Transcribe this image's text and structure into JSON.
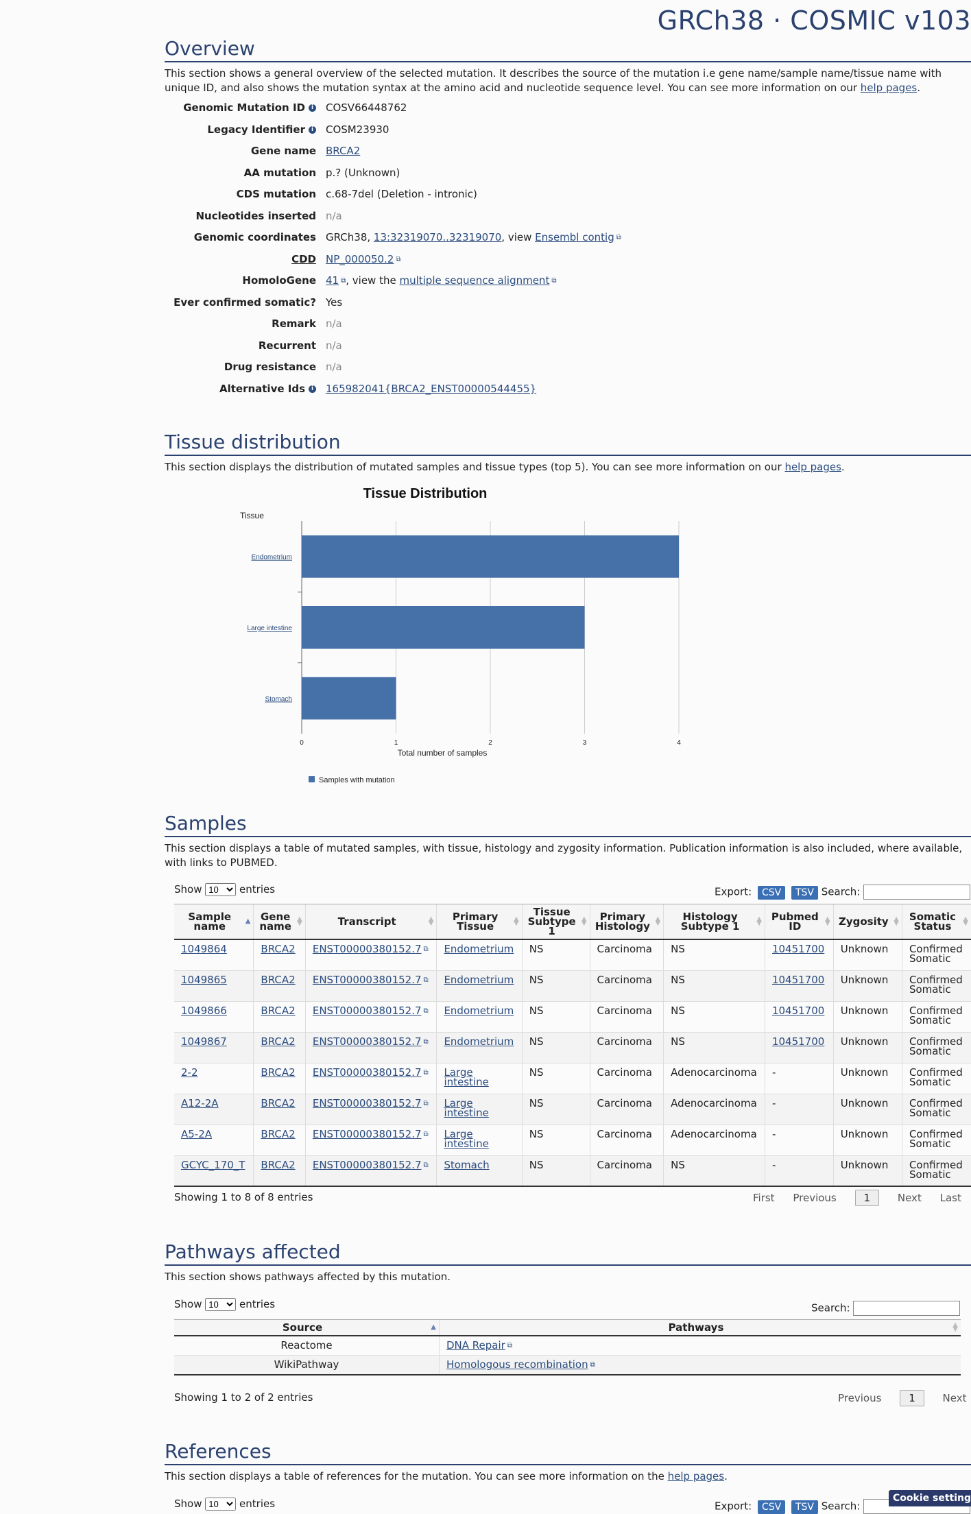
{
  "brand": "GRCh38 · COSMIC v103",
  "overview": {
    "title": "Overview",
    "desc_pre": "This section shows a general overview of the selected mutation. It describes the source of the mutation i.e gene name/sample name/tissue name with unique ID, and also shows the mutation syntax at the amino acid and nucleotide sequence level. You can see more information on our ",
    "desc_link": "help pages",
    "desc_post": ".",
    "fields": {
      "genomic_mutation_id": {
        "label": "Genomic Mutation ID",
        "value": "COSV66448762"
      },
      "legacy_identifier": {
        "label": "Legacy Identifier",
        "value": "COSM23930"
      },
      "gene_name": {
        "label": "Gene name",
        "value": "BRCA2"
      },
      "aa_mutation": {
        "label": "AA mutation",
        "value": "p.? (Unknown)"
      },
      "cds_mutation": {
        "label": "CDS mutation",
        "value": "c.68-7del (Deletion - intronic)"
      },
      "nucleotides_inserted": {
        "label": "Nucleotides inserted",
        "value": "n/a"
      },
      "genomic_coordinates": {
        "label": "Genomic coordinates",
        "prefix": "GRCh38, ",
        "link": "13:32319070..32319070",
        "mid": ", view ",
        "link2": "Ensembl contig"
      },
      "cdd": {
        "label": "CDD",
        "link": "NP_000050.2"
      },
      "homologene": {
        "label": "HomoloGene",
        "link": "41",
        "mid": ", view the ",
        "link2": "multiple sequence alignment"
      },
      "ever_confirmed_somatic": {
        "label": "Ever confirmed somatic?",
        "value": "Yes"
      },
      "remark": {
        "label": "Remark",
        "value": "n/a"
      },
      "recurrent": {
        "label": "Recurrent",
        "value": "n/a"
      },
      "drug_resistance": {
        "label": "Drug resistance",
        "value": "n/a"
      },
      "alternative_ids": {
        "label": "Alternative Ids",
        "link": "165982041{BRCA2_ENST00000544455}"
      }
    }
  },
  "tissue": {
    "title": "Tissue distribution",
    "desc_pre": "This section displays the distribution of mutated samples and tissue types (top 5). You can see more information on our ",
    "desc_link": "help pages",
    "desc_post": "."
  },
  "chart_data": {
    "type": "bar",
    "orientation": "horizontal",
    "title": "Tissue Distribution",
    "ylabel": "Tissue",
    "xlabel": "Total number of samples",
    "categories": [
      "Endometrium",
      "Large intestine",
      "Stomach"
    ],
    "series": [
      {
        "name": "Samples with mutation",
        "values": [
          4,
          3,
          1
        ]
      }
    ],
    "xlim": [
      0,
      4
    ],
    "xticks": [
      "0",
      "1",
      "2",
      "3",
      "4"
    ],
    "grid": true,
    "legend": "bottom",
    "color": "#4571a8"
  },
  "samples": {
    "title": "Samples",
    "desc": "This section displays a table of mutated samples, with tissue, histology and zygosity information. Publication information is also included, where available, with links to PUBMED.",
    "show_label": "Show",
    "show_value": "10",
    "entries_label": "entries",
    "export_label": "Export:",
    "csv": "CSV",
    "tsv": "TSV",
    "search_label": "Search:",
    "columns": [
      {
        "l1": "Sample",
        "l2": "name"
      },
      {
        "l1": "Gene",
        "l2": "name"
      },
      {
        "l1": "Transcript",
        "l2": ""
      },
      {
        "l1": "Primary",
        "l2": "Tissue"
      },
      {
        "l1": "Tissue",
        "l2": "Subtype 1"
      },
      {
        "l1": "Primary",
        "l2": "Histology"
      },
      {
        "l1": "Histology",
        "l2": "Subtype 1"
      },
      {
        "l1": "Pubmed",
        "l2": "ID"
      },
      {
        "l1": "Zygosity",
        "l2": ""
      },
      {
        "l1": "Somatic",
        "l2": "Status"
      }
    ],
    "rows": [
      {
        "sample": "1049864",
        "gene": "BRCA2",
        "transcript": "ENST00000380152.7",
        "tissue": "Endometrium",
        "tissue2": "",
        "subtype": "NS",
        "histology": "Carcinoma",
        "hsub": "NS",
        "pubmed": "10451700",
        "zygosity": "Unknown",
        "status1": "Confirmed",
        "status2": "Somatic"
      },
      {
        "sample": "1049865",
        "gene": "BRCA2",
        "transcript": "ENST00000380152.7",
        "tissue": "Endometrium",
        "tissue2": "",
        "subtype": "NS",
        "histology": "Carcinoma",
        "hsub": "NS",
        "pubmed": "10451700",
        "zygosity": "Unknown",
        "status1": "Confirmed",
        "status2": "Somatic"
      },
      {
        "sample": "1049866",
        "gene": "BRCA2",
        "transcript": "ENST00000380152.7",
        "tissue": "Endometrium",
        "tissue2": "",
        "subtype": "NS",
        "histology": "Carcinoma",
        "hsub": "NS",
        "pubmed": "10451700",
        "zygosity": "Unknown",
        "status1": "Confirmed",
        "status2": "Somatic"
      },
      {
        "sample": "1049867",
        "gene": "BRCA2",
        "transcript": "ENST00000380152.7",
        "tissue": "Endometrium",
        "tissue2": "",
        "subtype": "NS",
        "histology": "Carcinoma",
        "hsub": "NS",
        "pubmed": "10451700",
        "zygosity": "Unknown",
        "status1": "Confirmed",
        "status2": "Somatic"
      },
      {
        "sample": "2-2",
        "gene": "BRCA2",
        "transcript": "ENST00000380152.7",
        "tissue": "Large",
        "tissue2": "intestine",
        "subtype": "NS",
        "histology": "Carcinoma",
        "hsub": "Adenocarcinoma",
        "pubmed": "-",
        "zygosity": "Unknown",
        "status1": "Confirmed",
        "status2": "Somatic"
      },
      {
        "sample": "A12-2A",
        "gene": "BRCA2",
        "transcript": "ENST00000380152.7",
        "tissue": "Large",
        "tissue2": "intestine",
        "subtype": "NS",
        "histology": "Carcinoma",
        "hsub": "Adenocarcinoma",
        "pubmed": "-",
        "zygosity": "Unknown",
        "status1": "Confirmed",
        "status2": "Somatic"
      },
      {
        "sample": "A5-2A",
        "gene": "BRCA2",
        "transcript": "ENST00000380152.7",
        "tissue": "Large",
        "tissue2": "intestine",
        "subtype": "NS",
        "histology": "Carcinoma",
        "hsub": "Adenocarcinoma",
        "pubmed": "-",
        "zygosity": "Unknown",
        "status1": "Confirmed",
        "status2": "Somatic"
      },
      {
        "sample": "GCYC_170_T",
        "gene": "BRCA2",
        "transcript": "ENST00000380152.7",
        "tissue": "Stomach",
        "tissue2": "",
        "subtype": "NS",
        "histology": "Carcinoma",
        "hsub": "NS",
        "pubmed": "-",
        "zygosity": "Unknown",
        "status1": "Confirmed",
        "status2": "Somatic"
      }
    ],
    "info": "Showing 1 to 8 of 8 entries",
    "pager": {
      "first": "First",
      "previous": "Previous",
      "current": "1",
      "next": "Next",
      "last": "Last"
    }
  },
  "pathways": {
    "title": "Pathways affected",
    "desc": "This section shows pathways affected by this mutation.",
    "show_label": "Show",
    "show_value": "10",
    "entries_label": "entries",
    "search_label": "Search:",
    "columns": [
      "Source",
      "Pathways"
    ],
    "rows": [
      {
        "source": "Reactome",
        "pathway": "DNA Repair"
      },
      {
        "source": "WikiPathway",
        "pathway": "Homologous recombination"
      }
    ],
    "info": "Showing 1 to 2 of 2 entries",
    "pager": {
      "previous": "Previous",
      "current": "1",
      "next": "Next"
    }
  },
  "references": {
    "title": "References",
    "desc_pre": "This section displays a table of references for the mutation. You can see more information on the ",
    "desc_link": "help pages",
    "desc_post": ".",
    "show_label": "Show",
    "show_value": "10",
    "entries_label": "entries",
    "export_label": "Export:",
    "csv": "CSV",
    "tsv": "TSV",
    "search_label": "Search:"
  },
  "cookie_label": "Cookie settings"
}
